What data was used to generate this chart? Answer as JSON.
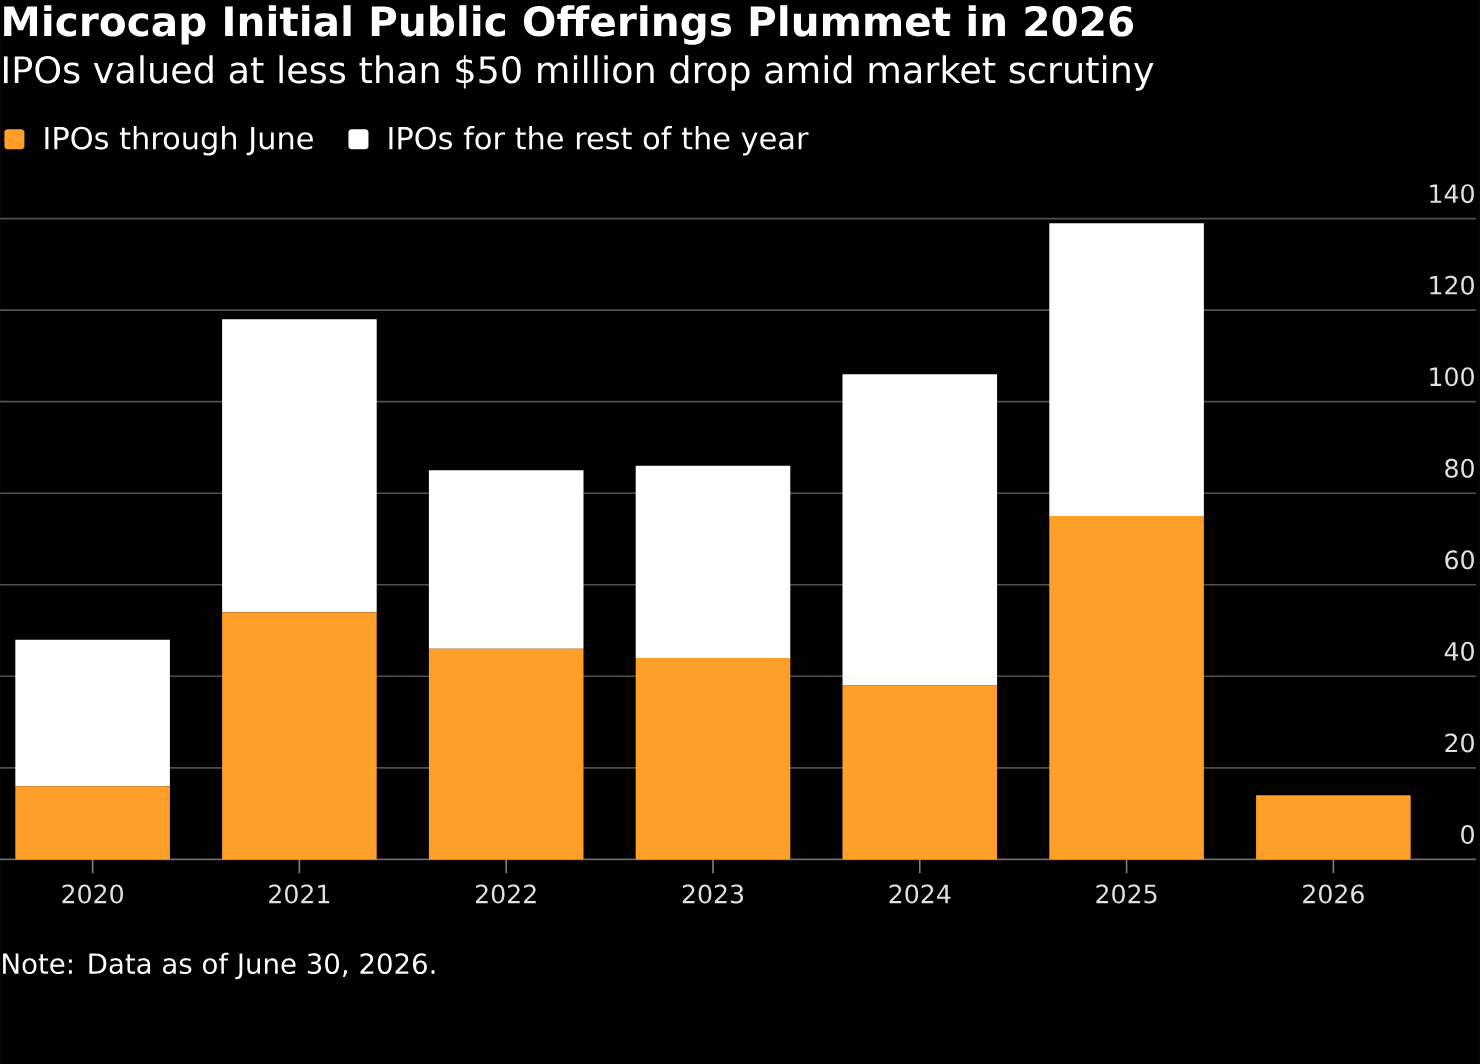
{
  "chart_data": {
    "type": "bar",
    "title": "Microcap Initial Public Offerings Plummet in 2026",
    "subtitle": "IPOs valued at less than $50 million drop amid market scrutiny",
    "categories": [
      "2020",
      "2021",
      "2022",
      "2023",
      "2024",
      "2025",
      "2026"
    ],
    "series": [
      {
        "name": "IPOs through June",
        "color": "#ff9f2a",
        "values": [
          16,
          54,
          46,
          44,
          38,
          75,
          14
        ]
      },
      {
        "name": "IPOs for the rest of the year",
        "color": "#ffffff",
        "values": [
          32,
          64,
          39,
          42,
          68,
          64,
          null
        ]
      }
    ],
    "stacked": true,
    "ylim": [
      0,
      140
    ],
    "yticks": [
      0,
      20,
      40,
      60,
      80,
      100,
      120,
      140
    ],
    "grid": "y",
    "legend": "top left",
    "annotations": [
      "Note: Data as of June 30, 2026."
    ]
  }
}
